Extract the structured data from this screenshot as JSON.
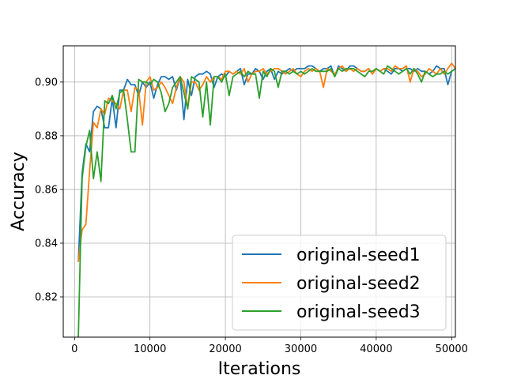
{
  "chart_data": {
    "type": "line",
    "title": "",
    "xlabel": "Iterations",
    "ylabel": "Accuracy",
    "xlim": [
      -1500,
      50500
    ],
    "ylim": [
      0.805,
      0.9135
    ],
    "xticks": [
      0,
      10000,
      20000,
      30000,
      40000,
      50000
    ],
    "xtick_labels": [
      "0",
      "10000",
      "20000",
      "30000",
      "40000",
      "50000"
    ],
    "yticks": [
      0.82,
      0.84,
      0.86,
      0.88,
      0.9
    ],
    "ytick_labels": [
      "0.82",
      "0.84",
      "0.86",
      "0.88",
      "0.90"
    ],
    "grid": true,
    "legend_position": "lower-right",
    "x": [
      500,
      1000,
      1500,
      2000,
      2500,
      3000,
      3500,
      4000,
      4500,
      5000,
      5500,
      6000,
      6500,
      7000,
      7500,
      8000,
      8500,
      9000,
      9500,
      10000,
      10500,
      11000,
      11500,
      12000,
      12500,
      13000,
      13500,
      14000,
      14500,
      15000,
      15500,
      16000,
      16500,
      17000,
      17500,
      18000,
      18500,
      19000,
      19500,
      20000,
      20500,
      21000,
      21500,
      22000,
      22500,
      23000,
      23500,
      24000,
      24500,
      25000,
      25500,
      26000,
      26500,
      27000,
      27500,
      28000,
      28500,
      29000,
      29500,
      30000,
      30500,
      31000,
      31500,
      32000,
      32500,
      33000,
      33500,
      34000,
      34500,
      35000,
      35500,
      36000,
      36500,
      37000,
      37500,
      38000,
      38500,
      39000,
      39500,
      40000,
      40500,
      41000,
      41500,
      42000,
      42500,
      43000,
      43500,
      44000,
      44500,
      45000,
      45500,
      46000,
      46500,
      47000,
      47500,
      48000,
      48500,
      49000,
      49500,
      50000,
      50500
    ],
    "series": [
      {
        "name": "original-seed1",
        "color": "#1f77b4",
        "values": [
          0.833,
          0.866,
          0.877,
          0.874,
          0.889,
          0.891,
          0.89,
          0.883,
          0.883,
          0.894,
          0.883,
          0.897,
          0.897,
          0.901,
          0.899,
          0.899,
          0.895,
          0.9,
          0.898,
          0.9,
          0.894,
          0.899,
          0.902,
          0.902,
          0.901,
          0.902,
          0.897,
          0.902,
          0.886,
          0.901,
          0.895,
          0.902,
          0.903,
          0.903,
          0.904,
          0.903,
          0.898,
          0.902,
          0.903,
          0.902,
          0.904,
          0.903,
          0.904,
          0.905,
          0.899,
          0.903,
          0.903,
          0.905,
          0.904,
          0.901,
          0.904,
          0.905,
          0.901,
          0.904,
          0.903,
          0.904,
          0.905,
          0.904,
          0.905,
          0.905,
          0.905,
          0.906,
          0.906,
          0.905,
          0.904,
          0.905,
          0.905,
          0.906,
          0.902,
          0.906,
          0.905,
          0.904,
          0.906,
          0.906,
          0.905,
          0.904,
          0.904,
          0.905,
          0.903,
          0.905,
          0.904,
          0.905,
          0.904,
          0.903,
          0.905,
          0.905,
          0.904,
          0.905,
          0.905,
          0.904,
          0.905,
          0.904,
          0.904,
          0.903,
          0.904,
          0.906,
          0.905,
          0.905,
          0.899,
          0.904,
          0.905
        ]
      },
      {
        "name": "original-seed2",
        "color": "#ff7f0e",
        "values": [
          0.833,
          0.845,
          0.847,
          0.867,
          0.885,
          0.883,
          0.89,
          0.888,
          0.894,
          0.893,
          0.892,
          0.89,
          0.897,
          0.897,
          0.889,
          0.898,
          0.897,
          0.884,
          0.9,
          0.902,
          0.897,
          0.898,
          0.9,
          0.898,
          0.895,
          0.892,
          0.898,
          0.902,
          0.9,
          0.89,
          0.9,
          0.9,
          0.897,
          0.899,
          0.902,
          0.9,
          0.902,
          0.902,
          0.901,
          0.904,
          0.904,
          0.903,
          0.904,
          0.903,
          0.905,
          0.9,
          0.903,
          0.904,
          0.904,
          0.905,
          0.903,
          0.904,
          0.905,
          0.905,
          0.904,
          0.903,
          0.904,
          0.905,
          0.903,
          0.902,
          0.904,
          0.905,
          0.904,
          0.905,
          0.904,
          0.898,
          0.905,
          0.904,
          0.903,
          0.905,
          0.906,
          0.904,
          0.905,
          0.904,
          0.905,
          0.904,
          0.904,
          0.905,
          0.903,
          0.905,
          0.904,
          0.905,
          0.905,
          0.904,
          0.906,
          0.905,
          0.905,
          0.906,
          0.9,
          0.905,
          0.904,
          0.902,
          0.903,
          0.905,
          0.904,
          0.903,
          0.905,
          0.903,
          0.905,
          0.907,
          0.905
        ]
      },
      {
        "name": "original-seed3",
        "color": "#2ca02c",
        "values": [
          0.805,
          0.864,
          0.876,
          0.882,
          0.864,
          0.874,
          0.863,
          0.893,
          0.892,
          0.895,
          0.89,
          0.896,
          0.897,
          0.886,
          0.874,
          0.874,
          0.901,
          0.9,
          0.9,
          0.899,
          0.901,
          0.9,
          0.896,
          0.889,
          0.892,
          0.898,
          0.9,
          0.902,
          0.896,
          0.89,
          0.902,
          0.901,
          0.9,
          0.887,
          0.9,
          0.884,
          0.902,
          0.902,
          0.9,
          0.903,
          0.895,
          0.902,
          0.903,
          0.904,
          0.902,
          0.904,
          0.903,
          0.903,
          0.894,
          0.904,
          0.902,
          0.905,
          0.904,
          0.898,
          0.904,
          0.904,
          0.903,
          0.904,
          0.903,
          0.904,
          0.903,
          0.904,
          0.905,
          0.904,
          0.904,
          0.904,
          0.904,
          0.905,
          0.902,
          0.905,
          0.904,
          0.905,
          0.905,
          0.905,
          0.904,
          0.903,
          0.902,
          0.904,
          0.904,
          0.905,
          0.904,
          0.903,
          0.906,
          0.905,
          0.904,
          0.903,
          0.904,
          0.905,
          0.903,
          0.905,
          0.903,
          0.9,
          0.904,
          0.903,
          0.902,
          0.903,
          0.903,
          0.904,
          0.903,
          0.904,
          0.905
        ]
      }
    ]
  }
}
